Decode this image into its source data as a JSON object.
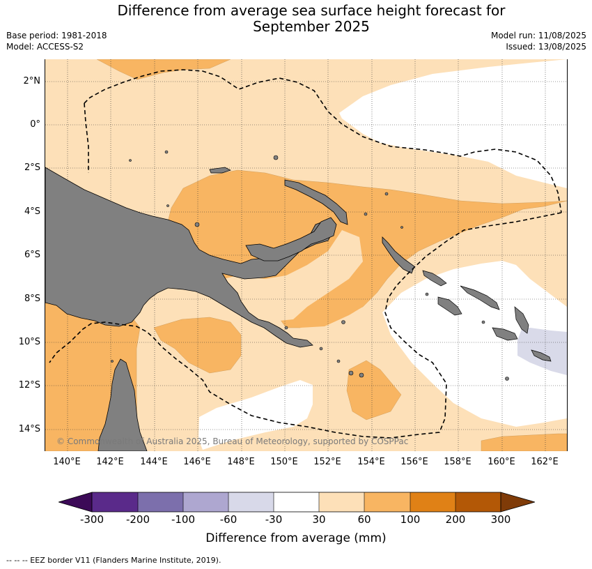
{
  "title_line1": "Difference from average sea surface height forecast for",
  "title_line2": "September 2025",
  "meta": {
    "base_period": "Base period: 1981-2018",
    "model": "Model: ACCESS-S2",
    "model_run": "Model run: 11/08/2025",
    "issued": "Issued: 13/08/2025"
  },
  "map": {
    "lat_labels": [
      "2°N",
      "0°",
      "2°S",
      "4°S",
      "6°S",
      "8°S",
      "10°S",
      "12°S",
      "14°S"
    ],
    "lon_labels": [
      "140°E",
      "142°E",
      "144°E",
      "146°E",
      "148°E",
      "150°E",
      "152°E",
      "154°E",
      "156°E",
      "158°E",
      "160°E",
      "162°E"
    ],
    "copyright": "© Commonwealth of Australia 2025, Bureau of Meteorology, supported by COSPPac",
    "land_color": "#808080",
    "levels": {
      "band_30_60": "#fde0b8",
      "band_60_100": "#f8b562",
      "band_neutral": "#ffffff",
      "band_minus60_minus30": "#d9dae9"
    }
  },
  "colorbar": {
    "ticks": [
      "-300",
      "-200",
      "-100",
      "-60",
      "-30",
      "30",
      "60",
      "100",
      "200",
      "300"
    ],
    "colors": [
      "#3c0a57",
      "#5a2a8a",
      "#7c6fac",
      "#aea7d0",
      "#d8d9e9",
      "#ffffff",
      "#fde0b8",
      "#f8b562",
      "#e08116",
      "#b35806",
      "#7f3b08"
    ],
    "title": "Difference from average (mm)"
  },
  "footnote": "--  --  -- EEZ border V11 (Flanders Marine Institute, 2019)."
}
